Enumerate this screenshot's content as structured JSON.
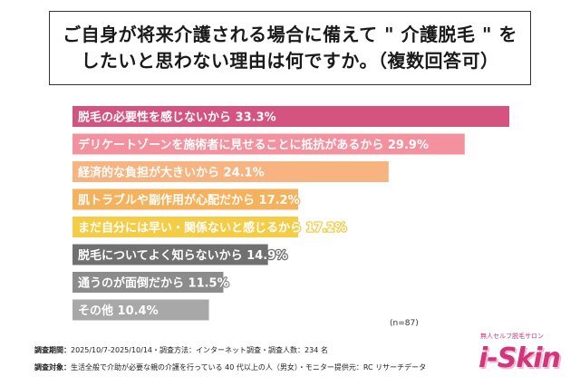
{
  "title_lines": [
    "ご自身が将来介護される場合に備えて \" 介護脱毛 \" を",
    "したいと思わない理由は何ですか。（複数回答可）"
  ],
  "chart_data": {
    "type": "bar",
    "orientation": "horizontal",
    "xlim": [
      0,
      35
    ],
    "categories": [
      "脱毛の必要性を感じないから",
      "デリケートゾーンを施術者に見せることに抵抗があるから",
      "経済的な負担が大きいから",
      "肌トラブルや副作用が心配だから",
      "まだ自分には早い・関係ないと感じるから",
      "脱毛についてよく知らないから",
      "通うのが面倒だから",
      "その他"
    ],
    "values": [
      33.3,
      29.9,
      24.1,
      17.2,
      17.2,
      14.9,
      11.5,
      10.4
    ],
    "value_labels": [
      "33.3%",
      "29.9%",
      "24.1%",
      "17.2%",
      "17.2%",
      "14.9%",
      "11.5%",
      "10.4%"
    ],
    "colors": [
      "#d4537f",
      "#f4919e",
      "#f8b480",
      "#f6b15c",
      "#f5cc45",
      "#707070",
      "#8c8c8c",
      "#a8a8a8"
    ],
    "label_color": "#ffffff",
    "legend": "none",
    "grid": false
  },
  "n_label": "(n=87)",
  "footer": {
    "line1_head": "調査期間：",
    "line1_text": "2025/10/7-2025/10/14・調査方法：インターネット調査・調査人数：234 名",
    "line2_head": "調査対象：",
    "line2_text": "生活全般で介助が必要な親の介護を行っている 40 代以上の人（男女）・モニター提供元：RC リサーチデータ"
  },
  "logo": {
    "tagline": "無人セルフ脱毛サロン",
    "brand": "i-Skin"
  }
}
